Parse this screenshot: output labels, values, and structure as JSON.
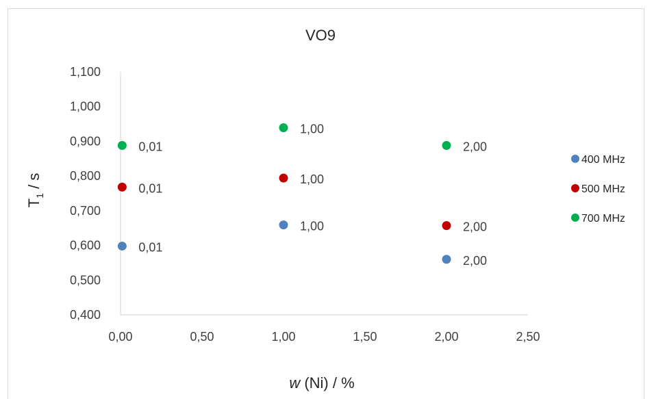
{
  "chart_data": {
    "type": "scatter",
    "title": "VO9",
    "xlabel": {
      "italic": "w",
      "rest": " (Ni) / %"
    },
    "ylabel": {
      "main": "T",
      "sub": "1",
      "rest": " / s"
    },
    "xlim": [
      0,
      2.5
    ],
    "ylim": [
      0.4,
      1.1
    ],
    "x_ticks": [
      0,
      0.5,
      1,
      1.5,
      2,
      2.5
    ],
    "y_ticks": [
      0.4,
      0.5,
      0.6,
      0.7,
      0.8,
      0.9,
      1.0,
      1.1
    ],
    "x_tick_labels": [
      "0,00",
      "0,50",
      "1,00",
      "1,50",
      "2,00",
      "2,50"
    ],
    "y_tick_labels": [
      "0,400",
      "0,500",
      "0,600",
      "0,700",
      "0,800",
      "0,900",
      "1,000",
      "1,100"
    ],
    "grid": false,
    "legend_position": "right",
    "series": [
      {
        "name": "400 MHz",
        "color": "#4f81bd",
        "x": [
          0.01,
          1.0,
          2.0
        ],
        "y": [
          0.598,
          0.659,
          0.56
        ],
        "labels": [
          "0,01",
          "1,00",
          "2,00"
        ]
      },
      {
        "name": "500 MHz",
        "color": "#c00000",
        "x": [
          0.01,
          1.0,
          2.0
        ],
        "y": [
          0.768,
          0.794,
          0.657
        ],
        "labels": [
          "0,01",
          "1,00",
          "2,00"
        ]
      },
      {
        "name": "700 MHz",
        "color": "#00b050",
        "x": [
          0.01,
          1.0,
          2.0
        ],
        "y": [
          0.888,
          0.939,
          0.888
        ],
        "labels": [
          "0,01",
          "1,00",
          "2,00"
        ]
      }
    ]
  }
}
